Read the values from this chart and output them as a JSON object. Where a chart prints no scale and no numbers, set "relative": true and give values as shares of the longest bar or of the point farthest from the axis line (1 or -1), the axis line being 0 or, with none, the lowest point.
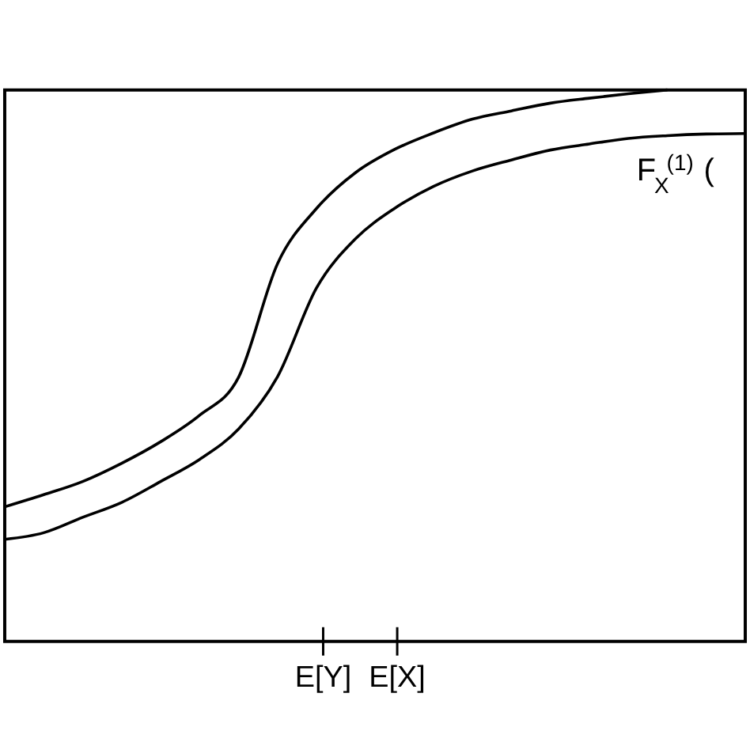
{
  "chart_data": {
    "type": "line",
    "relative": true,
    "categories": [
      null,
      null,
      null,
      null,
      null,
      null,
      null,
      null,
      null,
      null,
      null,
      null,
      null,
      null,
      null,
      null,
      null,
      null,
      null,
      null
    ],
    "annotations": [
      "E[Y]",
      "E[X]"
    ],
    "grid": false,
    "marker": "none",
    "line_style": "solid",
    "tick_labels": false,
    "series": [
      {
        "color": "#000000",
        "values": [
          0.244,
          0.266,
          0.29,
          0.323,
          0.362,
          0.41,
          0.479,
          0.685,
          0.785,
          0.85,
          0.892,
          0.922,
          0.947,
          0.962,
          0.976,
          0.985,
          0.993,
          1.0,
          null,
          null
        ]
      },
      {
        "name": "F$_{X}$$^{(1)}$ (",
        "color": "#000000",
        "values": [
          0.185,
          0.197,
          0.225,
          0.252,
          0.29,
          0.33,
          0.385,
          0.48,
          0.641,
          0.73,
          0.785,
          0.825,
          0.853,
          0.873,
          0.891,
          0.902,
          0.912,
          0.917,
          0.92,
          0.921
        ]
      }
    ]
  }
}
